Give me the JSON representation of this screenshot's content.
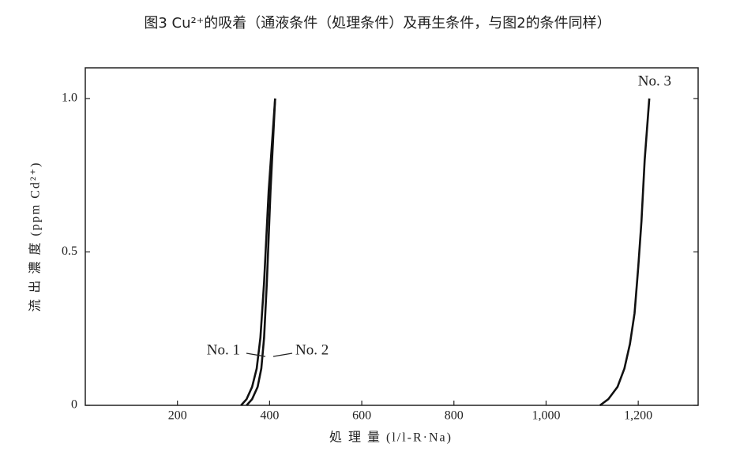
{
  "chart_data": {
    "type": "line",
    "title": "图3 Cu²⁺的吸着（通液条件（処理条件）及再生条件，与图2的条件同样）",
    "x_label": "処 理 量 (l/l-R·Na)",
    "y_label": "流 出 濃 度 (ppm Cd²⁺)",
    "xlim": [
      0,
      1330
    ],
    "ylim": [
      0,
      1.1
    ],
    "xticks": [
      200,
      400,
      600,
      800,
      {
        "value": 1000,
        "label": "1,000"
      },
      {
        "value": 1200,
        "label": "1,200"
      }
    ],
    "yticks": [
      0,
      0.5,
      {
        "value": 1,
        "label": "1.0"
      }
    ],
    "grid": false,
    "series": [
      {
        "name": "No. 1",
        "color": "#111111",
        "x": [
          338,
          350,
          362,
          372,
          380,
          388,
          398,
          412
        ],
        "values": [
          0,
          0.02,
          0.06,
          0.12,
          0.22,
          0.4,
          0.7,
          1.0
        ]
      },
      {
        "name": "No. 2",
        "color": "#111111",
        "x": [
          350,
          362,
          374,
          382,
          388,
          394,
          402,
          412
        ],
        "values": [
          0,
          0.02,
          0.06,
          0.12,
          0.22,
          0.4,
          0.7,
          1.0
        ]
      },
      {
        "name": "No. 3",
        "color": "#111111",
        "x": [
          1117,
          1135,
          1155,
          1170,
          1182,
          1192,
          1200,
          1207,
          1214,
          1224
        ],
        "values": [
          0,
          0.02,
          0.06,
          0.12,
          0.2,
          0.3,
          0.45,
          0.6,
          0.8,
          1.0
        ]
      }
    ]
  }
}
